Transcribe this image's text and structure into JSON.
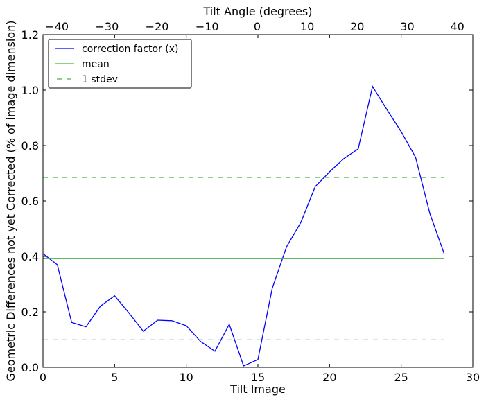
{
  "chart_data": {
    "type": "line",
    "xlabel": "Tilt Image",
    "ylabel": "Geometric Differences not yet Corrected (% of image dimension)",
    "top_xlabel": "Tilt Angle (degrees)",
    "xlim": [
      0,
      30
    ],
    "ylim": [
      0,
      1.2
    ],
    "top_xlim": [
      -42.8,
      43.1
    ],
    "xticks": [
      0,
      5,
      10,
      15,
      20,
      25,
      30
    ],
    "xtick_labels": [
      "0",
      "5",
      "10",
      "15",
      "20",
      "25",
      "30"
    ],
    "yticks": [
      0,
      0.2,
      0.4,
      0.6,
      0.8,
      1.0,
      1.2
    ],
    "ytick_labels": [
      "0.0",
      "0.2",
      "0.4",
      "0.6",
      "0.8",
      "1.0",
      "1.2"
    ],
    "top_xticks": [
      -40,
      -30,
      -20,
      -10,
      0,
      10,
      20,
      30,
      40
    ],
    "top_xtick_labels": [
      "−40",
      "−30",
      "−20",
      "−10",
      "0",
      "10",
      "20",
      "30",
      "40"
    ],
    "grid": false,
    "legend_placement": "top-left",
    "series": [
      {
        "name": "correction factor (x)",
        "color": "#0000ff",
        "style": "solid",
        "x": [
          0,
          1,
          2,
          3,
          4,
          5,
          6,
          7,
          8,
          9,
          10,
          11,
          12,
          13,
          14,
          15,
          16,
          17,
          18,
          19,
          20,
          21,
          22,
          23,
          24,
          25,
          26,
          27,
          28
        ],
        "values": [
          0.41,
          0.37,
          0.162,
          0.146,
          0.22,
          0.258,
          0.196,
          0.13,
          0.17,
          0.168,
          0.15,
          0.093,
          0.058,
          0.155,
          0.005,
          0.028,
          0.285,
          0.435,
          0.523,
          0.652,
          0.705,
          0.753,
          0.788,
          1.013,
          0.93,
          0.85,
          0.758,
          0.555,
          0.41
        ]
      },
      {
        "name": "mean",
        "color": "#4daf4a",
        "style": "solid",
        "x": [
          0,
          28
        ],
        "values": [
          0.392,
          0.392
        ]
      },
      {
        "name": "1 stdev",
        "color": "#4daf4a",
        "style": "dashed",
        "x": [
          0,
          28
        ],
        "values": [
          0.685,
          0.685
        ],
        "lower_values": [
          0.099,
          0.099
        ]
      }
    ]
  }
}
